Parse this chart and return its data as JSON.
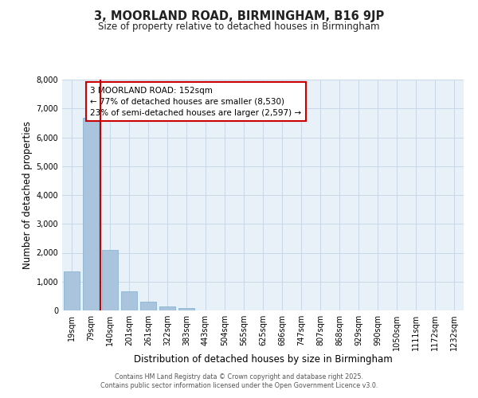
{
  "title_line1": "3, MOORLAND ROAD, BIRMINGHAM, B16 9JP",
  "title_line2": "Size of property relative to detached houses in Birmingham",
  "xlabel": "Distribution of detached houses by size in Birmingham",
  "ylabel": "Number of detached properties",
  "bar_labels": [
    "19sqm",
    "79sqm",
    "140sqm",
    "201sqm",
    "261sqm",
    "322sqm",
    "383sqm",
    "443sqm",
    "504sqm",
    "565sqm",
    "625sqm",
    "686sqm",
    "747sqm",
    "807sqm",
    "868sqm",
    "929sqm",
    "990sqm",
    "1050sqm",
    "1111sqm",
    "1172sqm",
    "1232sqm"
  ],
  "bar_values": [
    1350,
    6680,
    2100,
    650,
    310,
    150,
    80,
    0,
    0,
    0,
    0,
    0,
    0,
    0,
    0,
    0,
    0,
    0,
    0,
    0,
    0
  ],
  "bar_color": "#aac4de",
  "bar_edge_color": "#8ab4d0",
  "grid_color": "#c8d8e8",
  "background_color": "#e8f0f8",
  "vline_color": "#cc0000",
  "annotation_title": "3 MOORLAND ROAD: 152sqm",
  "annotation_line2": "← 77% of detached houses are smaller (8,530)",
  "annotation_line3": "23% of semi-detached houses are larger (2,597) →",
  "annotation_box_color": "#cc0000",
  "annotation_box_fill": "#ffffff",
  "ylim": [
    0,
    8000
  ],
  "yticks": [
    0,
    1000,
    2000,
    3000,
    4000,
    5000,
    6000,
    7000,
    8000
  ],
  "footnote_line1": "Contains HM Land Registry data © Crown copyright and database right 2025.",
  "footnote_line2": "Contains public sector information licensed under the Open Government Licence v3.0."
}
